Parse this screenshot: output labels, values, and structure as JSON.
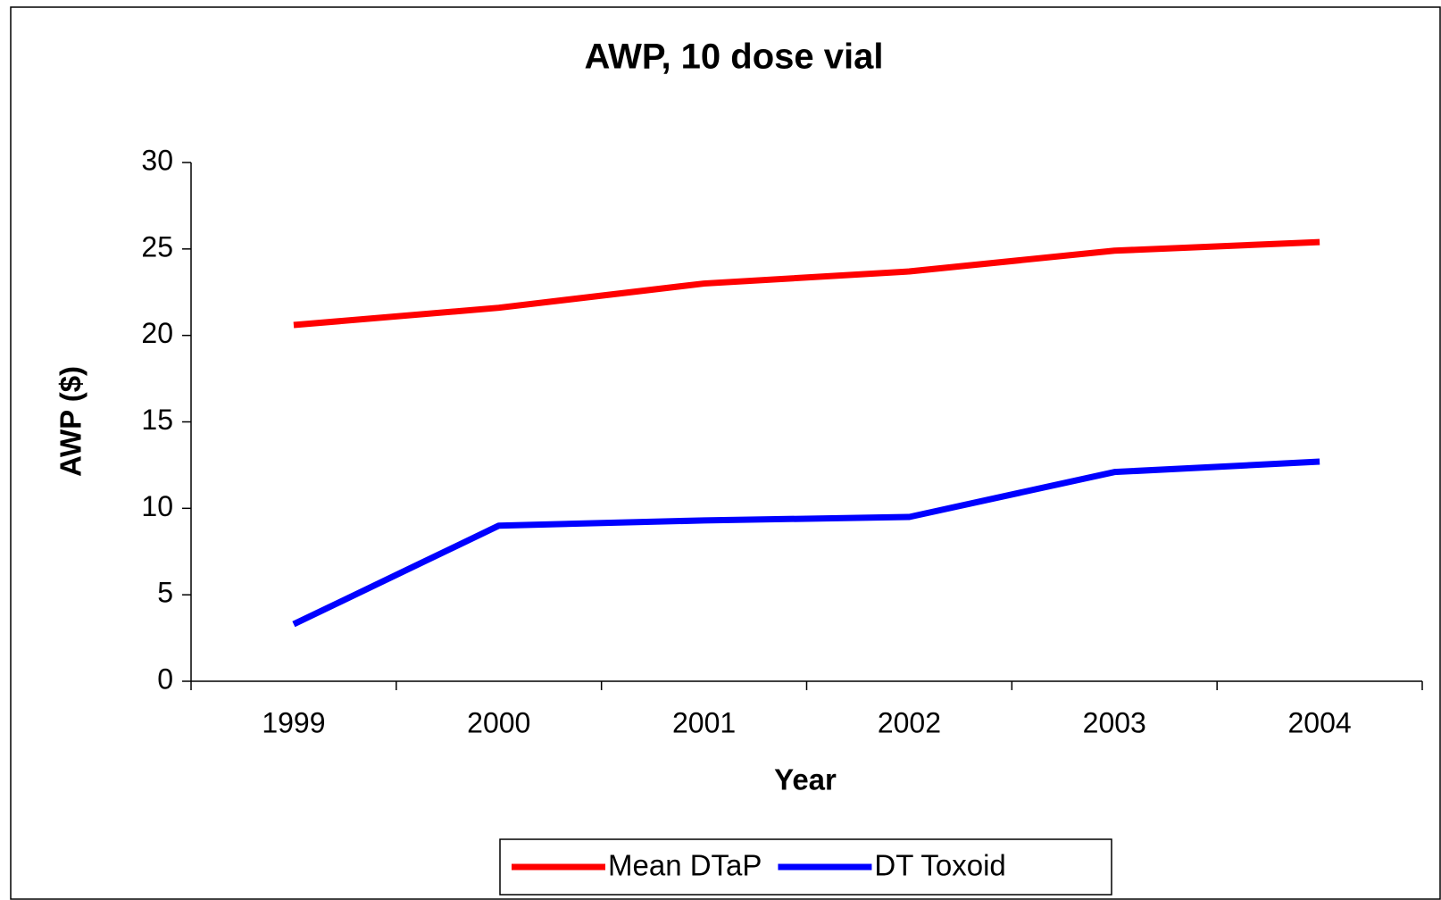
{
  "chart_data": {
    "type": "line",
    "title": "AWP, 10 dose vial",
    "xlabel": "Year",
    "ylabel": "AWP ($)",
    "categories": [
      "1999",
      "2000",
      "2001",
      "2002",
      "2003",
      "2004"
    ],
    "series": [
      {
        "name": "Mean DTaP",
        "color": "#ff0000",
        "values": [
          20.6,
          21.6,
          23.0,
          23.7,
          24.9,
          25.4
        ]
      },
      {
        "name": "DT Toxoid",
        "color": "#0000ff",
        "values": [
          3.3,
          9.0,
          9.3,
          9.5,
          12.1,
          12.7
        ]
      }
    ],
    "ylim": [
      0,
      30
    ],
    "yticks": [
      0,
      5,
      10,
      15,
      20,
      25,
      30
    ],
    "grid": false,
    "legend": "bottom"
  }
}
